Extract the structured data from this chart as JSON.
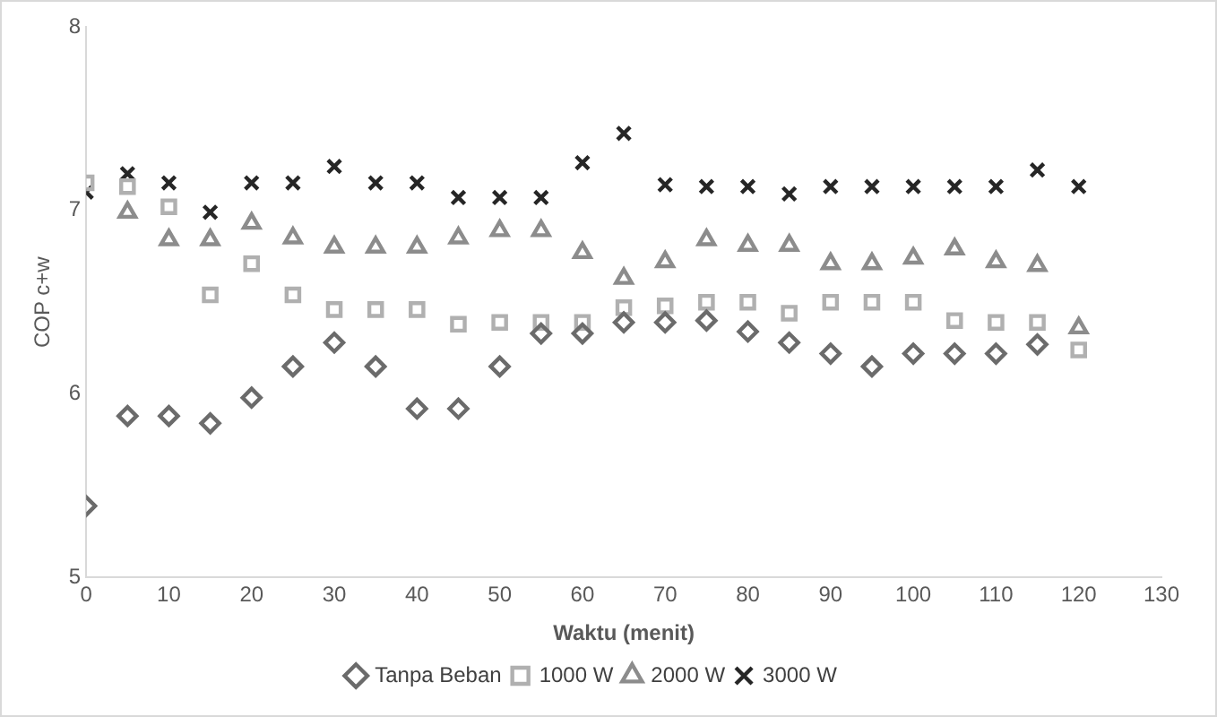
{
  "chart_data": {
    "type": "scatter",
    "xlabel": "Waktu (menit)",
    "ylabel": "COP c+w",
    "x": [
      0,
      5,
      10,
      15,
      20,
      25,
      30,
      35,
      40,
      45,
      50,
      55,
      60,
      65,
      70,
      75,
      80,
      85,
      90,
      95,
      100,
      105,
      110,
      115,
      120
    ],
    "xlim": [
      0,
      130
    ],
    "xticks": [
      0,
      10,
      20,
      30,
      40,
      50,
      60,
      70,
      80,
      90,
      100,
      110,
      120,
      130
    ],
    "ylim": [
      5,
      8
    ],
    "yticks": [
      5,
      6,
      7,
      8
    ],
    "grid": false,
    "legend": "bottom",
    "series": [
      {
        "name": "Tanpa Beban",
        "color": "#6b6b6b",
        "marker": "diamond",
        "values": [
          5.39,
          5.88,
          5.88,
          5.84,
          5.98,
          6.15,
          6.28,
          6.15,
          5.92,
          5.92,
          6.15,
          6.33,
          6.33,
          6.39,
          6.39,
          6.4,
          6.34,
          6.28,
          6.22,
          6.15,
          6.22,
          6.22,
          6.22,
          6.27,
          null
        ]
      },
      {
        "name": "1000 W",
        "color": "#b0b0b0",
        "marker": "square",
        "values": [
          7.15,
          7.13,
          7.02,
          6.54,
          6.71,
          6.54,
          6.46,
          6.46,
          6.46,
          6.38,
          6.39,
          6.39,
          6.39,
          6.47,
          6.48,
          6.5,
          6.5,
          6.44,
          6.5,
          6.5,
          6.5,
          6.4,
          6.39,
          6.39,
          6.24
        ]
      },
      {
        "name": "2000 W",
        "color": "#8c8c8c",
        "marker": "triangle",
        "values": [
          null,
          6.99,
          6.84,
          6.84,
          6.93,
          6.85,
          6.8,
          6.8,
          6.8,
          6.85,
          6.89,
          6.89,
          6.77,
          6.63,
          6.72,
          6.84,
          6.81,
          6.81,
          6.71,
          6.71,
          6.74,
          6.79,
          6.72,
          6.7,
          6.36
        ]
      },
      {
        "name": "3000 W",
        "color": "#262626",
        "marker": "cross",
        "values": [
          7.1,
          7.2,
          7.15,
          6.99,
          7.15,
          7.15,
          7.24,
          7.15,
          7.15,
          7.07,
          7.07,
          7.07,
          7.26,
          7.42,
          7.14,
          7.13,
          7.13,
          7.09,
          7.13,
          7.13,
          7.13,
          7.13,
          7.13,
          7.22,
          7.13
        ]
      }
    ]
  }
}
